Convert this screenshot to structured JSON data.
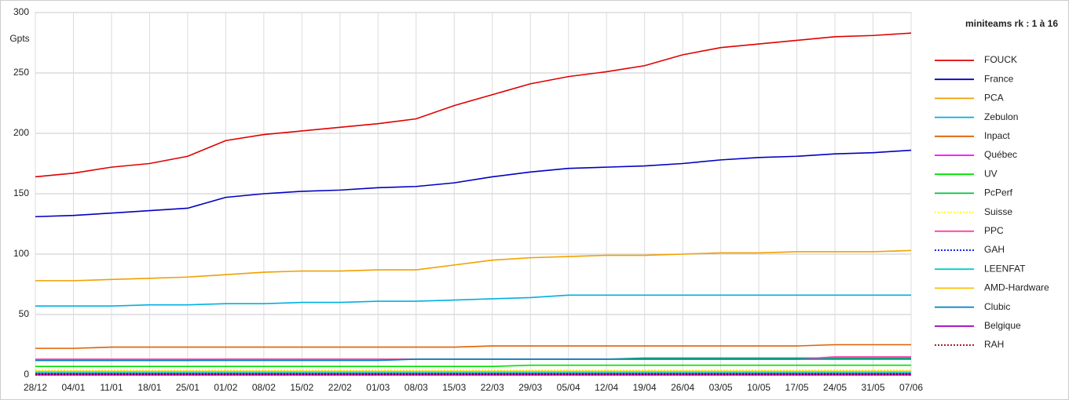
{
  "chart_data": {
    "type": "line",
    "title": "miniteams rk : 1 à 16",
    "y_label": "Gpts",
    "grid": true,
    "categories": [
      "28/12",
      "04/01",
      "11/01",
      "18/01",
      "25/01",
      "01/02",
      "08/02",
      "15/02",
      "22/02",
      "01/03",
      "08/03",
      "15/03",
      "22/03",
      "29/03",
      "05/04",
      "12/04",
      "19/04",
      "26/04",
      "03/05",
      "10/05",
      "17/05",
      "24/05",
      "31/05",
      "07/06"
    ],
    "ylim": [
      0,
      300
    ],
    "yticks": [
      0,
      50,
      100,
      150,
      200,
      250,
      300
    ],
    "series": [
      {
        "name": "FOUCK",
        "color": "#e00000",
        "values": [
          164,
          167,
          172,
          175,
          181,
          194,
          199,
          202,
          205,
          208,
          212,
          223,
          232,
          241,
          247,
          251,
          256,
          265,
          271,
          274,
          277,
          280,
          281,
          283
        ]
      },
      {
        "name": "France",
        "color": "#0000c0",
        "values": [
          131,
          132,
          134,
          136,
          138,
          147,
          150,
          152,
          153,
          155,
          156,
          159,
          164,
          168,
          171,
          172,
          173,
          175,
          178,
          180,
          181,
          183,
          184,
          186
        ]
      },
      {
        "name": "PCA",
        "color": "#f0a000",
        "values": [
          78,
          78,
          79,
          80,
          81,
          83,
          85,
          86,
          86,
          87,
          87,
          91,
          95,
          97,
          98,
          99,
          99,
          100,
          101,
          101,
          102,
          102,
          102,
          103
        ]
      },
      {
        "name": "Zebulon",
        "color": "#00b0e0",
        "values": [
          57,
          57,
          57,
          58,
          58,
          59,
          59,
          60,
          60,
          61,
          61,
          62,
          63,
          64,
          66,
          66,
          66,
          66,
          66,
          66,
          66,
          66,
          66,
          66
        ]
      },
      {
        "name": "Inpact",
        "color": "#e06000",
        "values": [
          22,
          22,
          23,
          23,
          23,
          23,
          23,
          23,
          23,
          23,
          23,
          23,
          24,
          24,
          24,
          24,
          24,
          24,
          24,
          24,
          24,
          25,
          25,
          25
        ]
      },
      {
        "name": "Québec",
        "color": "#ff00ff",
        "values": [
          1,
          1,
          1,
          1,
          1,
          1,
          1,
          1,
          1,
          1,
          1,
          1,
          1,
          1,
          1,
          1,
          1,
          1,
          1,
          1,
          1,
          1,
          1,
          1
        ]
      },
      {
        "name": "UV",
        "color": "#00e000",
        "values": [
          7,
          7,
          7,
          7,
          7,
          7,
          7,
          7,
          7,
          7,
          7,
          7,
          7,
          8,
          8,
          8,
          8,
          8,
          8,
          8,
          8,
          8,
          8,
          8
        ]
      },
      {
        "name": "PcPerf",
        "color": "#00c040",
        "values": [
          12,
          12,
          12,
          12,
          12,
          13,
          13,
          13,
          13,
          13,
          13,
          13,
          13,
          13,
          13,
          13,
          14,
          14,
          14,
          14,
          14,
          14,
          14,
          14
        ]
      },
      {
        "name": "Suisse",
        "color": "#ffff00",
        "style": "dotted",
        "values": [
          4,
          4,
          4,
          4,
          4,
          4,
          4,
          4,
          4,
          4,
          4,
          4,
          4,
          4,
          4,
          4,
          4,
          4,
          4,
          4,
          4,
          4,
          4,
          4
        ]
      },
      {
        "name": "PPC",
        "color": "#ff40a0",
        "values": [
          13,
          13,
          13,
          13,
          13,
          13,
          13,
          13,
          13,
          13,
          13,
          13,
          13,
          13,
          13,
          13,
          13,
          13,
          13,
          13,
          13,
          15,
          15,
          15
        ]
      },
      {
        "name": "GAH",
        "color": "#0000ff",
        "style": "dotted",
        "values": [
          1,
          1,
          1,
          1,
          1,
          1,
          1,
          1,
          1,
          1,
          1,
          1,
          1,
          1,
          1,
          1,
          1,
          1,
          1,
          1,
          1,
          1,
          1,
          1
        ]
      },
      {
        "name": "LEENFAT",
        "color": "#00d0c0",
        "values": [
          2,
          2,
          2,
          2,
          2,
          2,
          2,
          2,
          2,
          2,
          2,
          2,
          2,
          2,
          2,
          2,
          2,
          2,
          2,
          2,
          2,
          2,
          2,
          2
        ]
      },
      {
        "name": "AMD-Hardware",
        "color": "#ffc000",
        "values": [
          3,
          3,
          3,
          3,
          3,
          3,
          3,
          3,
          3,
          3,
          3,
          3,
          3,
          3,
          3,
          3,
          3,
          3,
          3,
          3,
          3,
          3,
          3,
          3
        ]
      },
      {
        "name": "Clubic",
        "color": "#0080c0",
        "values": [
          12,
          12,
          12,
          12,
          12,
          12,
          12,
          12,
          12,
          12,
          13,
          13,
          13,
          13,
          13,
          13,
          13,
          13,
          13,
          13,
          13,
          13,
          13,
          13
        ]
      },
      {
        "name": "Belgique",
        "color": "#a000c0",
        "values": [
          0,
          0,
          0,
          0,
          0,
          0,
          0,
          0,
          0,
          0,
          0,
          0,
          0,
          0,
          0,
          0,
          0,
          0,
          0,
          0,
          0,
          0,
          0,
          0
        ]
      },
      {
        "name": "RAH",
        "color": "#a00000",
        "style": "dotted",
        "values": [
          0,
          0,
          0,
          0,
          0,
          0,
          0,
          0,
          0,
          0,
          0,
          0,
          0,
          0,
          0,
          0,
          0,
          0,
          0,
          0,
          0,
          0,
          0,
          0
        ]
      }
    ]
  }
}
